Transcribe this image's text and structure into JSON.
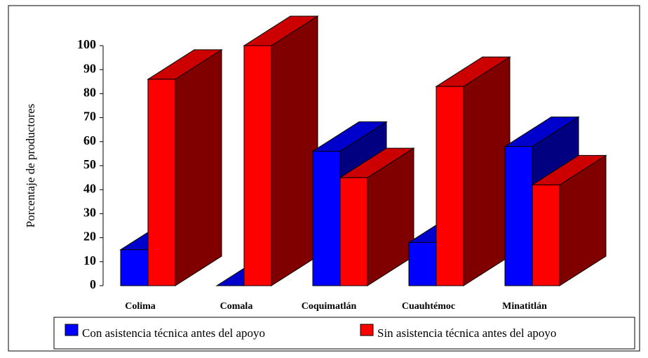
{
  "chart_data": {
    "type": "bar3d",
    "y_label": "Porcentaje de productores",
    "categories": [
      "Colima",
      "Comala",
      "Coquimatlán",
      "Cuauhtémoc",
      "Minatitlán"
    ],
    "series": [
      {
        "name": "Con asistencia técnica antes del apoyo",
        "color": "#0000ff",
        "values": [
          15,
          0,
          56,
          18,
          58
        ]
      },
      {
        "name": "Sin asistencia técnica antes del apoyo",
        "color": "#ff0000",
        "values": [
          86,
          100,
          45,
          83,
          42
        ]
      }
    ],
    "ylim": [
      0,
      100
    ],
    "yticks": [
      0,
      10,
      20,
      30,
      40,
      50,
      60,
      70,
      80,
      90,
      100
    ],
    "legend": "bottom"
  }
}
